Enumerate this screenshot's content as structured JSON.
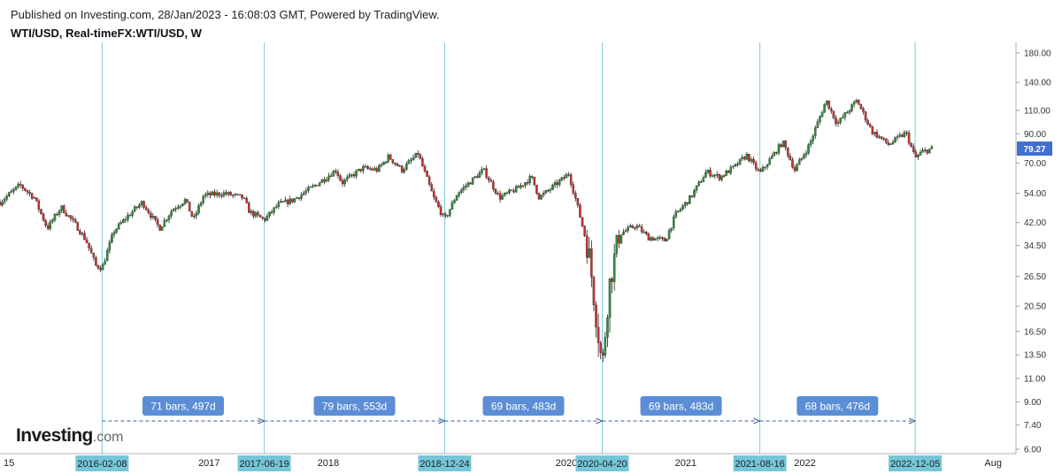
{
  "header": {
    "published": "Published on Investing.com, 28/Jan/2023 - 16:08:03 GMT, Powered by TradingView.",
    "symbol": "WTI/USD, Real-timeFX:WTI/USD, W"
  },
  "logo": {
    "name": "Investing",
    "suffix": ".com"
  },
  "colors": {
    "up": "#2f8f3a",
    "down": "#c9302c",
    "wick": "#222222",
    "vline": "#7fc8dc",
    "date_label_bg": "#75c6d8",
    "measure_bg": "#5b8ed6",
    "dash": "#3d5f8c",
    "price_label_bg": "#3f6fd1"
  },
  "chart_data": {
    "type": "candlestick",
    "title": "WTI/USD, Real-timeFX:WTI/USD, W",
    "y_scale": "log",
    "ylim": [
      6.0,
      180.0
    ],
    "y_ticks": [
      "180.00",
      "140.00",
      "110.00",
      "90.00",
      "70.00",
      "54.00",
      "42.00",
      "34.50",
      "26.50",
      "20.50",
      "16.50",
      "13.50",
      "11.00",
      "9.00",
      "7.40",
      "6.00"
    ],
    "x_labels": [
      {
        "date": "2015-07-01",
        "text": "15"
      },
      {
        "date": "2017-01-01",
        "text": "2017"
      },
      {
        "date": "2018-01-01",
        "text": "2018"
      },
      {
        "date": "2020-01-01",
        "text": "2020"
      },
      {
        "date": "2021-01-01",
        "text": "2021"
      },
      {
        "date": "2022-01-01",
        "text": "2022"
      },
      {
        "date": "2023-08-01",
        "text": "Aug"
      }
    ],
    "xlim": [
      "2015-04-01",
      "2023-10-10"
    ],
    "current_price": "79.27",
    "marked_dates": [
      "2016-02-08",
      "2017-06-19",
      "2018-12-24",
      "2020-04-20",
      "2021-08-16",
      "2022-12-05"
    ],
    "measurements": [
      {
        "from": "2016-02-08",
        "to": "2017-06-19",
        "label": "71 bars, 497d"
      },
      {
        "from": "2017-06-19",
        "to": "2018-12-24",
        "label": "79 bars, 553d"
      },
      {
        "from": "2018-12-24",
        "to": "2020-04-20",
        "label": "69 bars, 483d"
      },
      {
        "from": "2020-04-20",
        "to": "2021-08-16",
        "label": "69 bars, 483d"
      },
      {
        "from": "2021-08-16",
        "to": "2022-12-05",
        "label": "68 bars, 476d"
      }
    ],
    "price_path": [
      [
        "2015-04-01",
        50
      ],
      [
        "2015-06-01",
        58
      ],
      [
        "2015-07-15",
        52
      ],
      [
        "2015-08-24",
        40
      ],
      [
        "2015-10-05",
        48
      ],
      [
        "2015-11-20",
        41
      ],
      [
        "2015-12-21",
        36
      ],
      [
        "2016-01-20",
        29
      ],
      [
        "2016-02-08",
        28.5
      ],
      [
        "2016-03-15",
        39
      ],
      [
        "2016-05-01",
        45
      ],
      [
        "2016-06-10",
        50
      ],
      [
        "2016-08-02",
        40
      ],
      [
        "2016-09-10",
        47
      ],
      [
        "2016-10-20",
        51
      ],
      [
        "2016-11-14",
        43
      ],
      [
        "2016-12-15",
        53
      ],
      [
        "2017-02-15",
        54
      ],
      [
        "2017-04-15",
        52
      ],
      [
        "2017-05-05",
        46
      ],
      [
        "2017-06-19",
        43
      ],
      [
        "2017-08-01",
        49
      ],
      [
        "2017-09-15",
        51
      ],
      [
        "2017-11-15",
        57
      ],
      [
        "2018-01-25",
        66
      ],
      [
        "2018-02-12",
        59
      ],
      [
        "2018-04-15",
        67
      ],
      [
        "2018-06-01",
        66
      ],
      [
        "2018-07-05",
        74
      ],
      [
        "2018-08-15",
        66
      ],
      [
        "2018-10-03",
        76
      ],
      [
        "2018-11-20",
        52
      ],
      [
        "2018-12-24",
        43
      ],
      [
        "2019-02-01",
        54
      ],
      [
        "2019-04-22",
        66
      ],
      [
        "2019-06-10",
        52
      ],
      [
        "2019-08-01",
        56
      ],
      [
        "2019-09-16",
        62
      ],
      [
        "2019-10-10",
        52
      ],
      [
        "2019-12-20",
        61
      ],
      [
        "2020-01-08",
        64
      ],
      [
        "2020-02-01",
        50
      ],
      [
        "2020-03-09",
        33
      ],
      [
        "2020-03-30",
        20
      ],
      [
        "2020-04-20",
        12
      ],
      [
        "2020-05-10",
        24
      ],
      [
        "2020-06-10",
        38
      ],
      [
        "2020-08-01",
        41
      ],
      [
        "2020-09-08",
        37
      ],
      [
        "2020-10-30",
        36
      ],
      [
        "2020-12-01",
        45
      ],
      [
        "2021-01-15",
        52
      ],
      [
        "2021-03-05",
        65
      ],
      [
        "2021-04-15",
        62
      ],
      [
        "2021-06-01",
        68
      ],
      [
        "2021-07-06",
        75
      ],
      [
        "2021-08-16",
        64
      ],
      [
        "2021-10-25",
        84
      ],
      [
        "2021-12-01",
        66
      ],
      [
        "2022-01-15",
        82
      ],
      [
        "2022-03-07",
        120
      ],
      [
        "2022-04-10",
        98
      ],
      [
        "2022-06-10",
        120
      ],
      [
        "2022-07-25",
        92
      ],
      [
        "2022-09-15",
        82
      ],
      [
        "2022-11-07",
        91
      ],
      [
        "2022-12-05",
        73
      ],
      [
        "2022-12-26",
        77
      ],
      [
        "2023-01-27",
        79.3
      ]
    ]
  }
}
